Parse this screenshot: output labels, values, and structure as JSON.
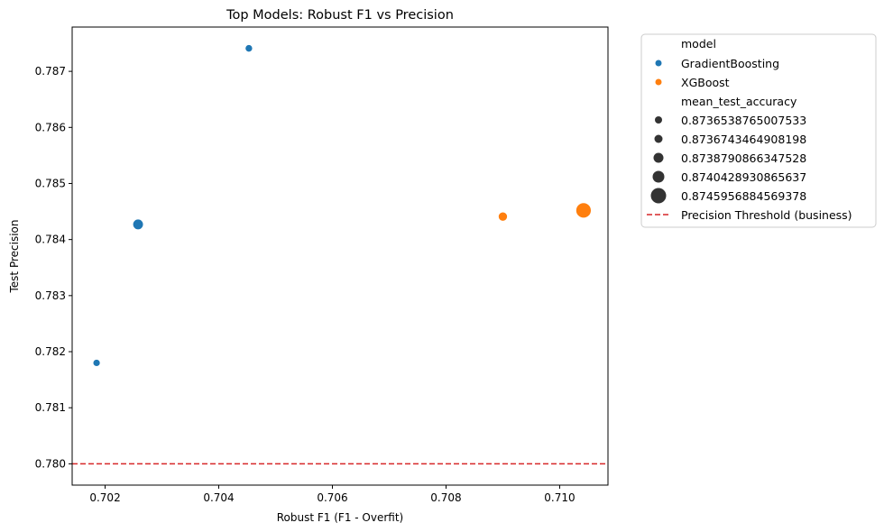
{
  "chart_data": {
    "type": "scatter",
    "title": "Top Models: Robust F1 vs Precision",
    "xlabel": "Robust F1 (F1 - Overfit)",
    "ylabel": "Test Precision",
    "xlim": [
      0.70142,
      0.71085
    ],
    "ylim": [
      0.77962,
      0.78779
    ],
    "xticks": [
      0.702,
      0.704,
      0.706,
      0.708,
      0.71
    ],
    "xtick_labels": [
      "0.702",
      "0.704",
      "0.706",
      "0.708",
      "0.710"
    ],
    "yticks": [
      0.78,
      0.781,
      0.782,
      0.783,
      0.784,
      0.785,
      0.786,
      0.787
    ],
    "ytick_labels": [
      "0.780",
      "0.781",
      "0.782",
      "0.783",
      "0.784",
      "0.785",
      "0.786",
      "0.787"
    ],
    "grid": false,
    "legend_placement": "outside-upper-right",
    "series": [
      {
        "name": "GradientBoosting",
        "color": "#1f77b4",
        "points": [
          {
            "x": 0.70185,
            "y": 0.7818,
            "size_value": 0.8736538765007533
          },
          {
            "x": 0.70258,
            "y": 0.78427,
            "size_value": 0.8740428930865637
          },
          {
            "x": 0.70453,
            "y": 0.78741,
            "size_value": 0.8736743464908198
          }
        ]
      },
      {
        "name": "XGBoost",
        "color": "#ff7f0e",
        "points": [
          {
            "x": 0.709,
            "y": 0.78441,
            "size_value": 0.8738790866347528
          },
          {
            "x": 0.71042,
            "y": 0.78452,
            "size_value": 0.8745956884569378
          }
        ]
      }
    ],
    "reference_lines": [
      {
        "orientation": "horizontal",
        "y": 0.78,
        "color": "#d62728",
        "style": "dashed",
        "label": "Precision Threshold (business)"
      }
    ],
    "legend": {
      "hue_title": "model",
      "hue_entries": [
        {
          "label": "GradientBoosting",
          "color": "#1f77b4"
        },
        {
          "label": "XGBoost",
          "color": "#ff7f0e"
        }
      ],
      "size_title": "mean_test_accuracy",
      "size_entries": [
        {
          "label": "0.8736538765007533",
          "value": 0.8736538765007533
        },
        {
          "label": "0.8736743464908198",
          "value": 0.8736743464908198
        },
        {
          "label": "0.8738790866347528",
          "value": 0.8738790866347528
        },
        {
          "label": "0.8740428930865637",
          "value": 0.8740428930865637
        },
        {
          "label": "0.8745956884569378",
          "value": 0.8745956884569378
        }
      ],
      "line_entry": {
        "label": "Precision Threshold (business)",
        "color": "#d62728"
      }
    }
  }
}
